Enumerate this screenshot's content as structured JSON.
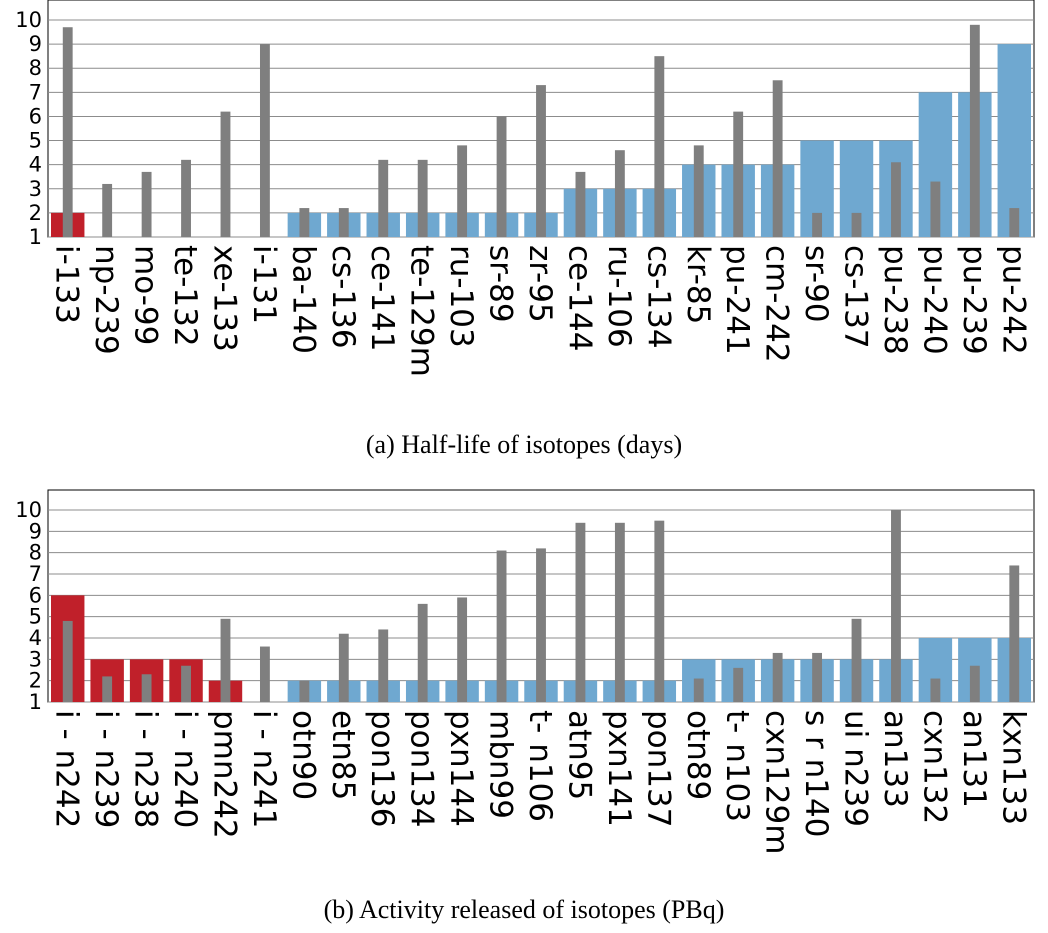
{
  "captions": {
    "a": "(a) Half-life of isotopes (days)",
    "b": "(b) Activity released of isotopes (PBq)"
  },
  "colors": {
    "red": "#c0202a",
    "blue": "#6fa8d0",
    "gray": "#7f7f7f"
  },
  "chart_data": [
    {
      "type": "bar",
      "ylim": [
        1,
        10
      ],
      "yticks": [
        1,
        2,
        3,
        4,
        5,
        6,
        7,
        8,
        9,
        10
      ],
      "grid": true,
      "categories": [
        "i-133",
        "np-239",
        "mo-99",
        "te-132",
        "xe-133",
        "i-131",
        "ba-140",
        "cs-136",
        "ce-141",
        "te-129m",
        "ru-103",
        "sr-89",
        "zr-95",
        "ce-144",
        "ru-106",
        "cs-134",
        "kr-85",
        "pu-241",
        "cm-242",
        "sr-90",
        "cs-137",
        "pu-238",
        "pu-240",
        "pu-239",
        "pu-242"
      ],
      "series": [
        {
          "color": "mixed",
          "values": [
            2,
            1,
            1,
            1,
            1,
            1,
            2,
            2,
            2,
            2,
            2,
            2,
            2,
            3,
            3,
            3,
            4,
            4,
            4,
            5,
            5,
            5,
            7,
            7,
            9
          ],
          "colors": [
            "red",
            "red",
            "red",
            "red",
            "red",
            "red",
            "blue",
            "blue",
            "blue",
            "blue",
            "blue",
            "blue",
            "blue",
            "blue",
            "blue",
            "blue",
            "blue",
            "blue",
            "blue",
            "blue",
            "blue",
            "blue",
            "blue",
            "blue",
            "blue"
          ]
        },
        {
          "color": "gray",
          "values": [
            9.7,
            3.2,
            3.7,
            4.2,
            6.2,
            9.0,
            2.2,
            2.2,
            4.2,
            4.2,
            4.8,
            6.0,
            7.3,
            3.7,
            4.6,
            8.5,
            4.8,
            6.2,
            7.5,
            2.0,
            2.0,
            4.1,
            3.3,
            9.8,
            2.2
          ]
        }
      ]
    },
    {
      "type": "bar",
      "ylim": [
        1,
        10
      ],
      "yticks": [
        1,
        2,
        3,
        4,
        5,
        6,
        7,
        8,
        9,
        10
      ],
      "grid": true,
      "categories": [
        "i - n242",
        "i - n239",
        "i - n238",
        "i - n240",
        "pmn242",
        "i - n241",
        "otn90",
        "etn85",
        "pon136",
        "pon134",
        "pxn144",
        "mbn99",
        "t- n106",
        "atn95",
        "pxn141",
        "pon137",
        "otn89",
        "t- n103",
        "cxn129m",
        "s r n140",
        "ui n239",
        "an133",
        "cxn132",
        "an131",
        "kxn133"
      ],
      "series": [
        {
          "color": "mixed",
          "values": [
            6,
            3,
            3,
            3,
            2,
            1,
            2,
            2,
            2,
            2,
            2,
            2,
            2,
            2,
            2,
            2,
            3,
            3,
            3,
            3,
            3,
            3,
            4,
            4,
            4
          ],
          "colors": [
            "red",
            "red",
            "red",
            "red",
            "red",
            "red",
            "blue",
            "blue",
            "blue",
            "blue",
            "blue",
            "blue",
            "blue",
            "blue",
            "blue",
            "blue",
            "blue",
            "blue",
            "blue",
            "blue",
            "blue",
            "blue",
            "blue",
            "blue",
            "blue"
          ]
        },
        {
          "color": "gray",
          "values": [
            4.8,
            2.2,
            2.3,
            2.7,
            4.9,
            3.6,
            2.0,
            4.2,
            4.4,
            5.6,
            5.9,
            8.1,
            8.2,
            9.4,
            9.4,
            9.5,
            2.1,
            2.6,
            3.3,
            3.3,
            4.9,
            10.0,
            2.1,
            2.7,
            7.4
          ]
        }
      ]
    }
  ]
}
